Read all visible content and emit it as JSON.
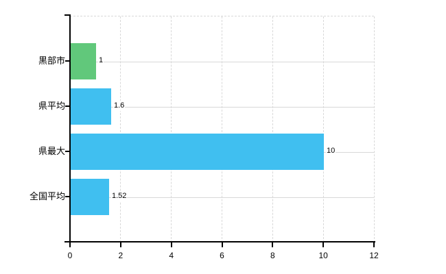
{
  "chart_data": {
    "type": "bar",
    "orientation": "horizontal",
    "title": "",
    "xlabel": "",
    "ylabel": "",
    "categories": [
      "黒部市",
      "県平均",
      "県最大",
      "全国平均"
    ],
    "values": [
      1,
      1.6,
      10,
      1.52
    ],
    "value_labels": [
      "1",
      "1.6",
      "10",
      "1.52"
    ],
    "bar_colors": [
      "#61c87b",
      "#40bff0",
      "#40bff0",
      "#40bff0"
    ],
    "xlim": [
      0,
      12
    ],
    "x_ticks": [
      0,
      2,
      4,
      6,
      8,
      10,
      12
    ],
    "x_tick_labels": [
      "0",
      "2",
      "4",
      "6",
      "8",
      "10",
      "12"
    ],
    "legend": "none",
    "grid": {
      "vertical_style": "dashed",
      "horizontal_style": "solid",
      "color": "#d8d8d8"
    },
    "axis_color": "#000000",
    "background_color": "#ffffff"
  }
}
